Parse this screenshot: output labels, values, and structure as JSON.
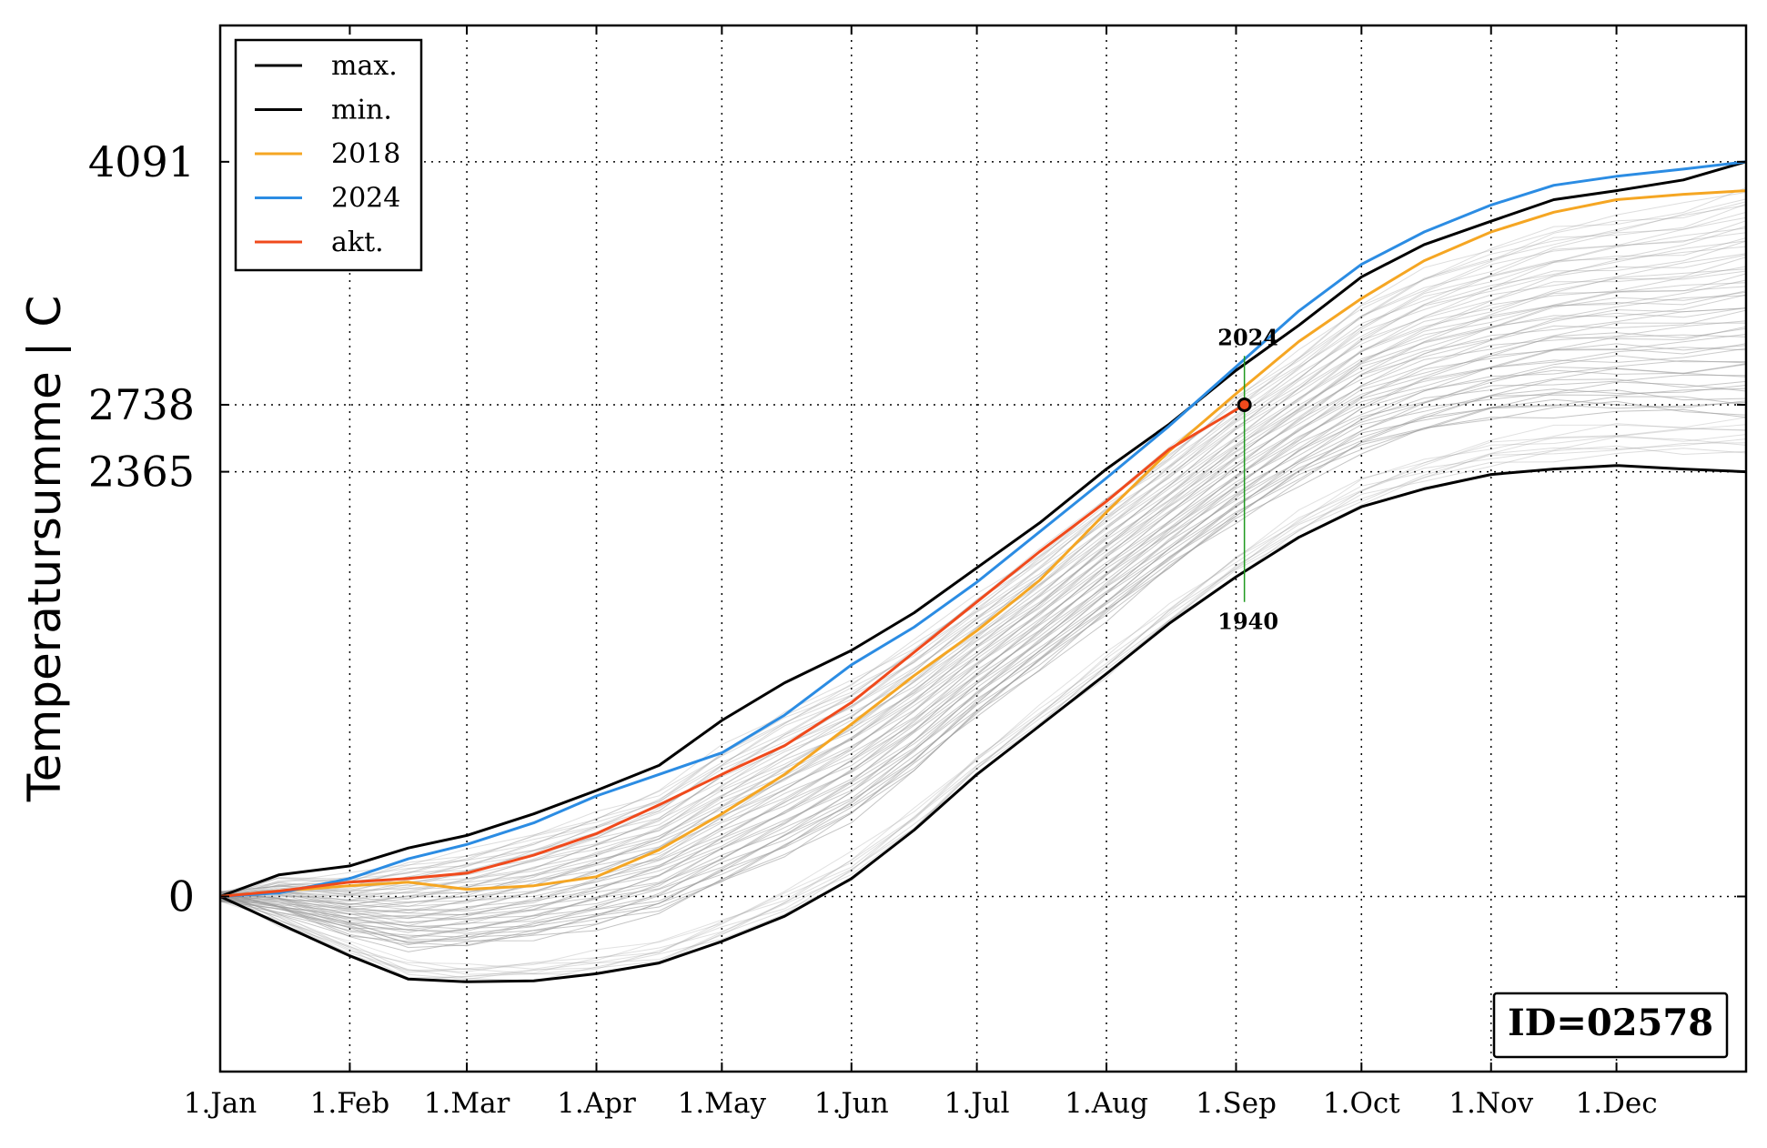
{
  "chart_data": {
    "type": "line",
    "ylabel": "Temperatursumme | C",
    "xlabel": "",
    "x_domain_days": [
      0,
      365
    ],
    "ylim": [
      -975,
      4850
    ],
    "x_ticks": [
      {
        "day": 0,
        "label": "1.Jan"
      },
      {
        "day": 31,
        "label": "1.Feb"
      },
      {
        "day": 59,
        "label": "1.Mar"
      },
      {
        "day": 90,
        "label": "1.Apr"
      },
      {
        "day": 120,
        "label": "1.May"
      },
      {
        "day": 151,
        "label": "1.Jun"
      },
      {
        "day": 181,
        "label": "1.Jul"
      },
      {
        "day": 212,
        "label": "1.Aug"
      },
      {
        "day": 243,
        "label": "1.Sep"
      },
      {
        "day": 273,
        "label": "1.Oct"
      },
      {
        "day": 304,
        "label": "1.Nov"
      },
      {
        "day": 334,
        "label": "1.Dec"
      }
    ],
    "y_ticks": [
      {
        "value": 0,
        "label": "0"
      },
      {
        "value": 2365,
        "label": "2365"
      },
      {
        "value": 2738,
        "label": "2738"
      },
      {
        "value": 4091,
        "label": "4091"
      }
    ],
    "grid": true,
    "legend": {
      "placement": "top-left",
      "entries": [
        {
          "label": "max.",
          "color": "#000000"
        },
        {
          "label": "min.",
          "color": "#000000"
        },
        {
          "label": "2018",
          "color": "#f5a623"
        },
        {
          "label": "2024",
          "color": "#2b8ce3"
        },
        {
          "label": "akt.",
          "color": "#f04a1c"
        }
      ]
    },
    "series": [
      {
        "key": "max",
        "color": "#000000",
        "x": [
          0,
          14,
          31,
          45,
          59,
          75,
          90,
          105,
          120,
          135,
          151,
          166,
          181,
          196,
          212,
          227,
          243,
          258,
          273,
          288,
          304,
          319,
          334,
          350,
          365
        ],
        "y": [
          0,
          120,
          170,
          270,
          340,
          460,
          590,
          730,
          980,
          1190,
          1370,
          1580,
          1830,
          2080,
          2380,
          2630,
          2930,
          3180,
          3450,
          3630,
          3760,
          3880,
          3930,
          3990,
          4091
        ]
      },
      {
        "key": "min",
        "color": "#000000",
        "x": [
          0,
          14,
          31,
          45,
          59,
          75,
          90,
          105,
          120,
          135,
          151,
          166,
          181,
          196,
          212,
          227,
          243,
          258,
          273,
          288,
          304,
          319,
          334,
          350,
          365
        ],
        "y": [
          0,
          -150,
          -330,
          -460,
          -475,
          -470,
          -430,
          -370,
          -250,
          -110,
          100,
          370,
          680,
          950,
          1240,
          1520,
          1780,
          2000,
          2170,
          2270,
          2350,
          2380,
          2400,
          2380,
          2365
        ]
      },
      {
        "key": "2024",
        "color": "#2b8ce3",
        "x": [
          0,
          14,
          31,
          45,
          59,
          75,
          90,
          105,
          120,
          135,
          151,
          166,
          181,
          196,
          212,
          227,
          243,
          258,
          273,
          288,
          304,
          319,
          334,
          350,
          365
        ],
        "y": [
          0,
          20,
          100,
          210,
          290,
          410,
          560,
          680,
          800,
          1010,
          1290,
          1500,
          1750,
          2030,
          2330,
          2620,
          2950,
          3260,
          3520,
          3700,
          3850,
          3960,
          4010,
          4050,
          4091
        ]
      },
      {
        "key": "2018",
        "color": "#f5a623",
        "x": [
          0,
          14,
          31,
          45,
          59,
          75,
          90,
          105,
          120,
          135,
          151,
          166,
          181,
          196,
          212,
          227,
          243,
          258,
          273,
          288,
          304,
          319,
          334,
          350,
          365
        ],
        "y": [
          0,
          30,
          60,
          80,
          40,
          60,
          110,
          260,
          460,
          680,
          960,
          1230,
          1480,
          1760,
          2140,
          2480,
          2800,
          3090,
          3330,
          3540,
          3700,
          3810,
          3880,
          3910,
          3930
        ]
      },
      {
        "key": "akt",
        "color": "#f04a1c",
        "x": [
          0,
          14,
          31,
          45,
          59,
          75,
          90,
          105,
          120,
          135,
          151,
          166,
          181,
          196,
          212,
          227,
          245
        ],
        "y": [
          0,
          30,
          80,
          100,
          130,
          230,
          350,
          510,
          680,
          840,
          1080,
          1360,
          1640,
          1920,
          2200,
          2490,
          2738
        ]
      }
    ],
    "annotations": {
      "current_point": {
        "day": 245,
        "value": 2738
      },
      "range_marker": {
        "day": 245,
        "top_value": 3010,
        "bottom_value": 1640,
        "top_label": "2024",
        "bottom_label": "1940",
        "color": "#1f9a1f"
      },
      "id_box": {
        "text": "ID=02578",
        "placement": "bottom-right"
      }
    },
    "background_series_color": "#9a9a9a"
  }
}
